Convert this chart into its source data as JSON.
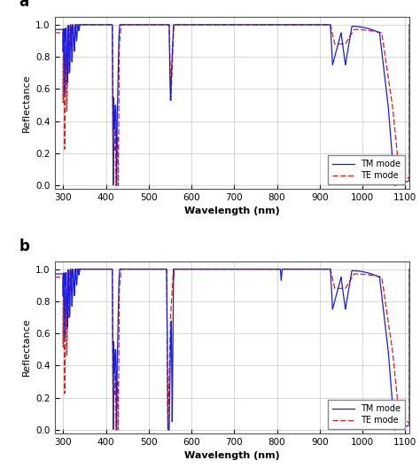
{
  "xlim": [
    280,
    1110
  ],
  "ylim": [
    -0.02,
    1.05
  ],
  "xticks": [
    300,
    400,
    500,
    600,
    700,
    800,
    900,
    1000,
    1100
  ],
  "yticks": [
    0,
    0.2,
    0.4,
    0.6,
    0.8,
    1.0
  ],
  "xlabel": "Wavelength (nm)",
  "ylabel": "Reflectance",
  "label_a": "a",
  "label_b": "b",
  "tm_color": "#1c1cdc",
  "te_color": "#dc1c1c",
  "tm_label": "TM mode",
  "te_label": "TE mode",
  "background": "#ffffff",
  "grid_color": "#c8c8c8"
}
